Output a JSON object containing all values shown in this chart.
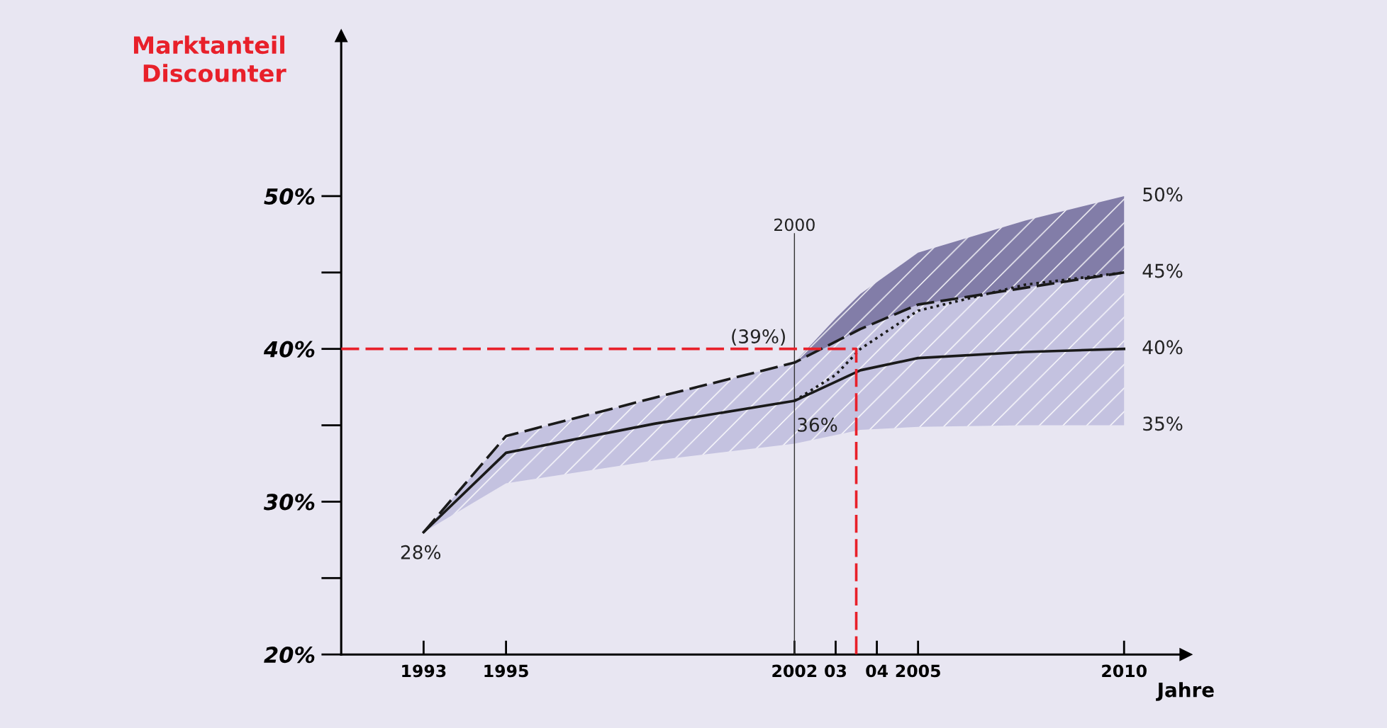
{
  "chart_data": {
    "type": "line",
    "ylabel": "Marktanteil\nDiscounter",
    "xlabel": "Jahre",
    "xlim": [
      1991,
      2011.5
    ],
    "ylim": [
      20,
      60.5
    ],
    "xticks": [
      1993,
      1995,
      2002,
      {
        "value": 2003,
        "label": "03"
      },
      {
        "value": 2004,
        "label": "04"
      },
      2005,
      2010
    ],
    "yticks": [
      {
        "value": 20,
        "label": "20%"
      },
      {
        "value": 30,
        "label": "30%"
      },
      {
        "value": 40,
        "label": "40%"
      },
      {
        "value": 50,
        "label": "50%"
      }
    ],
    "series": [
      {
        "color": "#1a1a1a",
        "line_style": "solid",
        "x": [
          1993,
          1995,
          1998.6,
          2002,
          2003.6,
          2005,
          2007.6,
          2010
        ],
        "values": [
          28,
          33.2,
          35.1,
          36.6,
          38.6,
          39.4,
          39.8,
          40
        ],
        "lower": [
          28,
          31.2,
          32.7,
          33.8,
          34.7,
          34.9,
          35.0,
          35
        ],
        "upper": [
          28,
          34.3,
          36.8,
          39.1,
          41.3,
          42.9,
          44.0,
          45
        ]
      },
      {
        "color": "#1a1a1a",
        "line_style": "dashed",
        "x": [
          1993,
          1995,
          1998.6,
          2002,
          2003.6,
          2005,
          2007.6,
          2010
        ],
        "values": [
          28,
          34.3,
          36.8,
          39.1,
          41.3,
          42.9,
          44.0,
          45
        ]
      },
      {
        "color": "#1a1a1a",
        "line_style": "dotted",
        "x": [
          2002,
          2003,
          2003.6,
          2005,
          2007.6,
          2010
        ],
        "values": [
          36.6,
          38.3,
          40.0,
          42.5,
          44.2,
          45
        ],
        "lower": [
          39.1,
          40.4,
          41.3,
          42.9,
          44.0,
          45
        ],
        "upper": [
          39.1,
          42.0,
          43.6,
          46.3,
          48.4,
          50
        ]
      },
      {
        "color": "#e8202a",
        "line_style": "dashed",
        "x": [
          1991,
          2003.5,
          2003.5
        ],
        "values": [
          40,
          40,
          20
        ]
      }
    ],
    "ref_lines": [
      {
        "axis": "x",
        "value": 2002,
        "color": "#333333"
      }
    ],
    "annotations": [
      {
        "text": "2000",
        "x": 2002,
        "y": 47.5
      },
      {
        "text": "50%",
        "x": 2010,
        "y": 50
      },
      {
        "text": "45%",
        "x": 2010,
        "y": 45
      },
      {
        "text": "40%",
        "x": 2010,
        "y": 40
      },
      {
        "text": "35%",
        "x": 2010,
        "y": 35
      },
      {
        "text": "28%",
        "x": 1993,
        "y": 28
      },
      {
        "text": "36%",
        "x": 2002,
        "y": 36.6
      },
      {
        "text": "(39%)",
        "x": 2002,
        "y": 39.1
      }
    ],
    "grid": false,
    "marker": "none"
  }
}
